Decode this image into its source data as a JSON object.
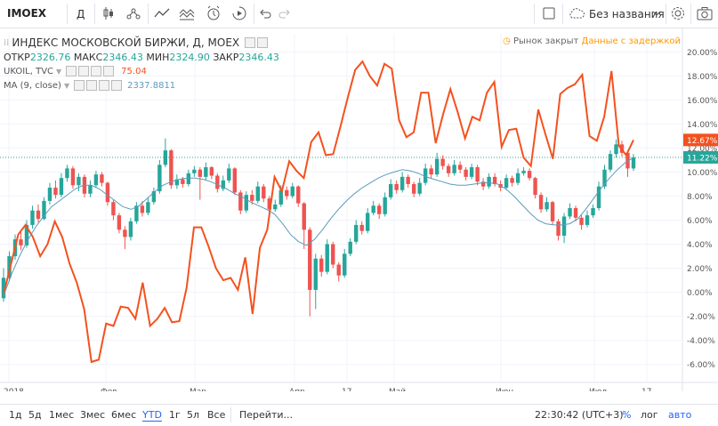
{
  "toolbar": {
    "symbol": "IMOEX",
    "interval": "Д",
    "layout_name": "Без названия"
  },
  "legend": {
    "main_title": "ИНДЕКС МОСКОВСКОЙ БИРЖИ, Д, MOEX",
    "open_label": "ОТКР",
    "open_value": "2326.76",
    "high_label": "МАКС",
    "high_value": "2346.43",
    "low_label": "МИН",
    "low_value": "2324.90",
    "close_label": "ЗАКР",
    "close_value": "2346.43",
    "compare_symbol": "UKOIL, TVC",
    "compare_value": "75.04",
    "ma_label": "MA (9, close)",
    "ma_value": "2337.8811"
  },
  "status": {
    "market_closed": "Рынок закрыт",
    "delayed": "Данные с задержкой"
  },
  "bottom": {
    "ranges": [
      "1д",
      "5д",
      "1мес",
      "3мес",
      "6мес",
      "YTD",
      "1г",
      "5л",
      "Все"
    ],
    "active_range": "YTD",
    "goto": "Перейти...",
    "time": "22:30:42 (UTC+3)",
    "percent": "%",
    "log": "лог",
    "auto": "авто"
  },
  "colors": {
    "up": "#26a69a",
    "down": "#ef5350",
    "compare": "#f4511e",
    "ma": "#5b9bbd",
    "last_price": "#26a69a",
    "compare_badge": "#f4511e"
  },
  "chart_data": {
    "type": "line",
    "y_axis_unit": "%",
    "y_ticks": [
      "-6.00%",
      "-4.00%",
      "-2.00%",
      "0.00%",
      "2.00%",
      "4.00%",
      "6.00%",
      "8.00%",
      "10.00%",
      "12.00%",
      "14.00%",
      "16.00%",
      "18.00%",
      "20.00%"
    ],
    "ylim": [
      -7.5,
      21.5
    ],
    "x_labels": [
      "2018",
      "Фев",
      "Мар",
      "Апр",
      "17",
      "Май",
      "Июн",
      "Июл",
      "17"
    ],
    "last_values": {
      "imoex_pct": "11.22%",
      "ukoil_pct": "12.67%"
    },
    "series": [
      {
        "name": "UKOIL, TVC",
        "values": [
          -0.2,
          2.3,
          4.8,
          5.6,
          4.6,
          3.0,
          4.0,
          5.9,
          4.6,
          2.4,
          0.8,
          -1.4,
          -5.8,
          -5.6,
          -2.6,
          -2.8,
          -1.2,
          -1.3,
          -2.2,
          0.8,
          -2.8,
          -2.2,
          -1.3,
          -2.5,
          -2.4,
          0.4,
          5.4,
          5.4,
          3.8,
          2.0,
          1.0,
          1.2,
          0.2,
          2.9,
          -1.8,
          3.7,
          5.2,
          9.6,
          8.4,
          10.9,
          10.1,
          9.5,
          12.5,
          13.3,
          11.4,
          11.5,
          13.8,
          16.2,
          18.5,
          19.2,
          18.0,
          17.2,
          19.0,
          18.6,
          14.3,
          12.9,
          13.3,
          16.6,
          16.6,
          12.4,
          14.8,
          16.9,
          15.0,
          12.8,
          14.6,
          14.3,
          16.6,
          17.5,
          12.1,
          13.5,
          13.6,
          11.2,
          10.5,
          15.2,
          13.1,
          11.1,
          16.5,
          17.0,
          17.3,
          18.1,
          13.0,
          12.6,
          14.6,
          18.4,
          12.2,
          11.4,
          12.67
        ]
      },
      {
        "name": "MA (9, close)",
        "values": [
          -0.3,
          1.5,
          3.0,
          4.3,
          5.4,
          6.3,
          7.1,
          7.6,
          8.1,
          8.6,
          8.9,
          8.9,
          8.6,
          8.1,
          7.6,
          7.1,
          6.9,
          7.2,
          7.8,
          8.4,
          8.9,
          9.2,
          9.4,
          9.5,
          9.5,
          9.4,
          9.2,
          8.9,
          8.6,
          8.2,
          7.9,
          7.5,
          7.2,
          6.9,
          6.5,
          5.7,
          4.8,
          4.2,
          3.9,
          4.4,
          5.2,
          6.1,
          6.9,
          7.6,
          8.2,
          8.7,
          9.1,
          9.5,
          9.8,
          10.0,
          10.2,
          10.1,
          9.9,
          9.6,
          9.4,
          9.2,
          9.0,
          8.9,
          8.9,
          9.0,
          9.1,
          9.1,
          9.0,
          8.6,
          8.0,
          7.3,
          6.6,
          6.0,
          5.7,
          5.6,
          5.6,
          5.7,
          6.1,
          6.9,
          7.8,
          8.7,
          9.5,
          10.2,
          10.8,
          11.2
        ]
      }
    ],
    "candles": [
      {
        "o": -0.5,
        "c": 1.2,
        "h": 2.0,
        "l": -0.8
      },
      {
        "o": 1.2,
        "c": 3.0,
        "h": 3.4,
        "l": 0.9
      },
      {
        "o": 3.0,
        "c": 4.4,
        "h": 4.8,
        "l": 2.7
      },
      {
        "o": 4.4,
        "c": 3.9,
        "h": 5.0,
        "l": 3.5
      },
      {
        "o": 3.9,
        "c": 5.6,
        "h": 6.0,
        "l": 3.7
      },
      {
        "o": 5.6,
        "c": 6.8,
        "h": 7.2,
        "l": 5.3
      },
      {
        "o": 6.8,
        "c": 6.1,
        "h": 7.3,
        "l": 5.8
      },
      {
        "o": 6.1,
        "c": 7.6,
        "h": 7.9,
        "l": 6.0
      },
      {
        "o": 7.6,
        "c": 8.7,
        "h": 9.1,
        "l": 7.3
      },
      {
        "o": 8.7,
        "c": 8.1,
        "h": 9.3,
        "l": 7.8
      },
      {
        "o": 8.1,
        "c": 9.5,
        "h": 9.9,
        "l": 7.9
      },
      {
        "o": 9.5,
        "c": 10.3,
        "h": 10.6,
        "l": 9.2
      },
      {
        "o": 10.3,
        "c": 8.9,
        "h": 10.5,
        "l": 8.6
      },
      {
        "o": 8.9,
        "c": 9.6,
        "h": 9.9,
        "l": 8.4
      },
      {
        "o": 9.6,
        "c": 8.2,
        "h": 9.8,
        "l": 7.9
      },
      {
        "o": 8.2,
        "c": 8.9,
        "h": 9.3,
        "l": 7.9
      },
      {
        "o": 8.9,
        "c": 9.8,
        "h": 10.1,
        "l": 8.7
      },
      {
        "o": 9.8,
        "c": 9.1,
        "h": 10.0,
        "l": 8.8
      },
      {
        "o": 9.1,
        "c": 7.5,
        "h": 9.2,
        "l": 7.2
      },
      {
        "o": 7.5,
        "c": 6.4,
        "h": 7.7,
        "l": 6.0
      },
      {
        "o": 6.4,
        "c": 5.2,
        "h": 6.6,
        "l": 4.9
      },
      {
        "o": 5.2,
        "c": 4.6,
        "h": 5.5,
        "l": 3.6
      },
      {
        "o": 4.6,
        "c": 5.9,
        "h": 6.2,
        "l": 4.3
      },
      {
        "o": 5.9,
        "c": 7.2,
        "h": 7.5,
        "l": 5.7
      },
      {
        "o": 7.2,
        "c": 6.6,
        "h": 7.6,
        "l": 6.3
      },
      {
        "o": 6.6,
        "c": 7.5,
        "h": 7.9,
        "l": 6.4
      },
      {
        "o": 7.5,
        "c": 8.4,
        "h": 8.7,
        "l": 7.3
      },
      {
        "o": 8.4,
        "c": 10.6,
        "h": 11.0,
        "l": 8.2
      },
      {
        "o": 10.6,
        "c": 11.8,
        "h": 12.8,
        "l": 10.4
      },
      {
        "o": 11.8,
        "c": 8.9,
        "h": 11.9,
        "l": 8.6
      },
      {
        "o": 8.9,
        "c": 9.4,
        "h": 9.8,
        "l": 8.6
      },
      {
        "o": 9.4,
        "c": 9.0,
        "h": 9.6,
        "l": 8.7
      },
      {
        "o": 9.0,
        "c": 9.9,
        "h": 10.2,
        "l": 8.8
      },
      {
        "o": 9.9,
        "c": 10.2,
        "h": 10.5,
        "l": 9.6
      },
      {
        "o": 10.2,
        "c": 9.6,
        "h": 10.4,
        "l": 7.7
      },
      {
        "o": 9.6,
        "c": 10.4,
        "h": 10.8,
        "l": 9.3
      },
      {
        "o": 10.4,
        "c": 9.7,
        "h": 10.5,
        "l": 9.4
      },
      {
        "o": 9.7,
        "c": 8.6,
        "h": 9.9,
        "l": 8.3
      },
      {
        "o": 8.6,
        "c": 9.3,
        "h": 9.7,
        "l": 8.4
      },
      {
        "o": 9.3,
        "c": 10.3,
        "h": 10.7,
        "l": 9.1
      },
      {
        "o": 10.3,
        "c": 8.3,
        "h": 10.4,
        "l": 8.1
      },
      {
        "o": 8.3,
        "c": 6.8,
        "h": 8.5,
        "l": 6.5
      },
      {
        "o": 6.8,
        "c": 8.1,
        "h": 8.4,
        "l": 6.6
      },
      {
        "o": 8.1,
        "c": 7.6,
        "h": 8.5,
        "l": 7.3
      },
      {
        "o": 7.6,
        "c": 8.8,
        "h": 9.2,
        "l": 7.4
      },
      {
        "o": 8.8,
        "c": 7.8,
        "h": 9.0,
        "l": 7.5
      },
      {
        "o": 7.8,
        "c": 6.9,
        "h": 8.0,
        "l": 6.6
      },
      {
        "o": 6.9,
        "c": 7.3,
        "h": 7.7,
        "l": 6.7
      },
      {
        "o": 7.3,
        "c": 8.5,
        "h": 8.9,
        "l": 7.1
      },
      {
        "o": 8.5,
        "c": 8.0,
        "h": 8.8,
        "l": 7.7
      },
      {
        "o": 8.0,
        "c": 8.8,
        "h": 9.1,
        "l": 7.8
      },
      {
        "o": 8.8,
        "c": 7.4,
        "h": 8.9,
        "l": 7.1
      },
      {
        "o": 7.4,
        "c": 5.2,
        "h": 7.5,
        "l": 3.6
      },
      {
        "o": 5.2,
        "c": 0.2,
        "h": 5.4,
        "l": -2.0
      },
      {
        "o": 0.2,
        "c": 2.8,
        "h": 3.2,
        "l": -1.4
      },
      {
        "o": 2.8,
        "c": 1.7,
        "h": 3.1,
        "l": 1.3
      },
      {
        "o": 1.7,
        "c": 4.0,
        "h": 4.4,
        "l": 1.5
      },
      {
        "o": 4.0,
        "c": 2.3,
        "h": 4.2,
        "l": 2.0
      },
      {
        "o": 2.3,
        "c": 1.4,
        "h": 2.5,
        "l": 0.9
      },
      {
        "o": 1.4,
        "c": 3.2,
        "h": 3.6,
        "l": 1.2
      },
      {
        "o": 3.2,
        "c": 4.2,
        "h": 4.5,
        "l": 3.0
      },
      {
        "o": 4.2,
        "c": 5.6,
        "h": 6.0,
        "l": 4.0
      },
      {
        "o": 5.6,
        "c": 5.1,
        "h": 5.9,
        "l": 4.8
      },
      {
        "o": 5.1,
        "c": 6.6,
        "h": 7.0,
        "l": 4.9
      },
      {
        "o": 6.6,
        "c": 7.2,
        "h": 7.6,
        "l": 6.4
      },
      {
        "o": 7.2,
        "c": 6.5,
        "h": 7.4,
        "l": 6.1
      },
      {
        "o": 6.5,
        "c": 7.9,
        "h": 8.3,
        "l": 6.3
      },
      {
        "o": 7.9,
        "c": 9.0,
        "h": 9.4,
        "l": 7.7
      },
      {
        "o": 9.0,
        "c": 8.5,
        "h": 9.3,
        "l": 8.2
      },
      {
        "o": 8.5,
        "c": 9.6,
        "h": 10.0,
        "l": 8.3
      },
      {
        "o": 9.6,
        "c": 9.0,
        "h": 9.8,
        "l": 8.7
      },
      {
        "o": 9.0,
        "c": 8.2,
        "h": 9.2,
        "l": 7.9
      },
      {
        "o": 8.2,
        "c": 9.1,
        "h": 9.5,
        "l": 8.0
      },
      {
        "o": 9.1,
        "c": 10.3,
        "h": 10.7,
        "l": 8.9
      },
      {
        "o": 10.3,
        "c": 9.8,
        "h": 10.6,
        "l": 9.5
      },
      {
        "o": 9.8,
        "c": 11.1,
        "h": 11.6,
        "l": 9.6
      },
      {
        "o": 11.1,
        "c": 10.5,
        "h": 11.4,
        "l": 10.2
      },
      {
        "o": 10.5,
        "c": 9.9,
        "h": 10.7,
        "l": 9.6
      },
      {
        "o": 9.9,
        "c": 10.6,
        "h": 11.0,
        "l": 9.7
      },
      {
        "o": 10.6,
        "c": 10.2,
        "h": 10.9,
        "l": 9.9
      },
      {
        "o": 10.2,
        "c": 9.6,
        "h": 10.4,
        "l": 9.3
      },
      {
        "o": 9.6,
        "c": 10.4,
        "h": 10.7,
        "l": 9.4
      },
      {
        "o": 10.4,
        "c": 9.2,
        "h": 10.6,
        "l": 8.9
      },
      {
        "o": 9.2,
        "c": 8.8,
        "h": 9.5,
        "l": 8.5
      },
      {
        "o": 8.8,
        "c": 9.6,
        "h": 9.9,
        "l": 8.6
      },
      {
        "o": 9.6,
        "c": 9.0,
        "h": 9.9,
        "l": 8.8
      },
      {
        "o": 9.0,
        "c": 8.7,
        "h": 9.3,
        "l": 8.4
      },
      {
        "o": 8.7,
        "c": 9.5,
        "h": 9.8,
        "l": 8.5
      },
      {
        "o": 9.5,
        "c": 9.1,
        "h": 9.7,
        "l": 8.8
      },
      {
        "o": 9.1,
        "c": 9.9,
        "h": 10.3,
        "l": 8.9
      },
      {
        "o": 9.9,
        "c": 10.1,
        "h": 10.4,
        "l": 9.7
      },
      {
        "o": 10.1,
        "c": 9.5,
        "h": 10.3,
        "l": 9.3
      },
      {
        "o": 9.5,
        "c": 8.1,
        "h": 9.6,
        "l": 7.8
      },
      {
        "o": 8.1,
        "c": 6.9,
        "h": 8.3,
        "l": 6.6
      },
      {
        "o": 6.9,
        "c": 7.5,
        "h": 7.9,
        "l": 6.7
      },
      {
        "o": 7.5,
        "c": 5.9,
        "h": 7.6,
        "l": 5.6
      },
      {
        "o": 5.9,
        "c": 4.7,
        "h": 6.1,
        "l": 4.3
      },
      {
        "o": 4.7,
        "c": 6.3,
        "h": 6.6,
        "l": 4.1
      },
      {
        "o": 6.3,
        "c": 7.0,
        "h": 7.4,
        "l": 6.1
      },
      {
        "o": 7.0,
        "c": 6.2,
        "h": 7.2,
        "l": 5.9
      },
      {
        "o": 6.2,
        "c": 5.6,
        "h": 6.4,
        "l": 5.2
      },
      {
        "o": 5.6,
        "c": 6.4,
        "h": 6.8,
        "l": 5.4
      },
      {
        "o": 6.4,
        "c": 7.0,
        "h": 7.3,
        "l": 6.2
      },
      {
        "o": 7.0,
        "c": 8.8,
        "h": 9.2,
        "l": 6.8
      },
      {
        "o": 8.8,
        "c": 10.2,
        "h": 10.6,
        "l": 8.6
      },
      {
        "o": 10.2,
        "c": 11.5,
        "h": 11.8,
        "l": 10.0
      },
      {
        "o": 11.5,
        "c": 12.3,
        "h": 12.7,
        "l": 11.2
      },
      {
        "o": 12.3,
        "c": 11.6,
        "h": 12.6,
        "l": 11.3
      },
      {
        "o": 11.6,
        "c": 10.3,
        "h": 11.8,
        "l": 9.6
      },
      {
        "o": 10.3,
        "c": 11.22,
        "h": 11.5,
        "l": 10.1
      }
    ]
  }
}
